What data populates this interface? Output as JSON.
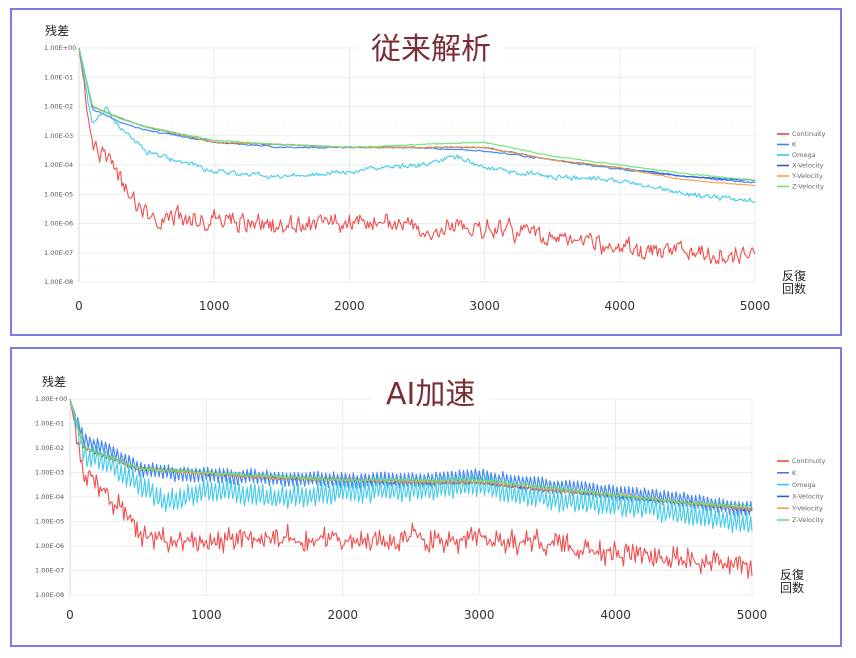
{
  "panels": [
    {
      "title": "従来解析",
      "ylabel": "残差",
      "xunit": "反復\n回数",
      "seed": 11,
      "mode": "conventional"
    },
    {
      "title": "AI加速",
      "ylabel": "残差",
      "xunit": "反復\n回数",
      "seed": 37,
      "mode": "ai"
    }
  ],
  "chart_data": [
    {
      "type": "line",
      "title": "従来解析",
      "ylabel": "残差",
      "xlabel": "反復回数",
      "yscale": "log",
      "ylim": [
        1e-08,
        1
      ],
      "xlim": [
        0,
        5000
      ],
      "xticks": [
        0,
        1000,
        2000,
        3000,
        4000,
        5000
      ],
      "yticks": [
        "1.00E+00",
        "1.00E-01",
        "1.00E-02",
        "1.00E-03",
        "1.00E-04",
        "1.00E-05",
        "1.00E-06",
        "1.00E-07",
        "1.00E-08"
      ],
      "legend": "right",
      "series": [
        {
          "name": "Continuity",
          "color": "#ef4444",
          "x": [
            0,
            100,
            200,
            300,
            400,
            500,
            700,
            1000,
            1500,
            2000,
            2500,
            3000,
            3500,
            4000,
            4500,
            5000
          ],
          "y": [
            1,
            0.0005,
            0.0002,
            5e-05,
            6e-06,
            2e-06,
            1.5e-06,
            1.5e-06,
            8e-07,
            1e-06,
            8e-07,
            8e-07,
            3e-07,
            1.5e-07,
            1e-07,
            8e-08
          ]
        },
        {
          "name": "K",
          "color": "#3b82f6",
          "x": [
            0,
            100,
            300,
            500,
            1000,
            1500,
            2000,
            2500,
            3000,
            3500,
            4000,
            4500,
            5000
          ],
          "y": [
            1,
            0.008,
            0.003,
            0.0015,
            0.0006,
            0.0004,
            0.0004,
            0.0004,
            0.0003,
            0.00015,
            7e-05,
            4e-05,
            2.5e-05
          ]
        },
        {
          "name": "Omega",
          "color": "#38c8e8",
          "x": [
            0,
            100,
            200,
            300,
            500,
            700,
            1000,
            1500,
            2000,
            2500,
            2800,
            3000,
            3500,
            4000,
            4500,
            5000
          ],
          "y": [
            1,
            0.002,
            0.01,
            0.002,
            0.0003,
            0.00015,
            6e-05,
            4e-05,
            6e-05,
            0.0001,
            0.0002,
            8e-05,
            4e-05,
            3e-05,
            1e-05,
            6e-06
          ]
        },
        {
          "name": "X-Velocity",
          "color": "#2f5dd9",
          "x": [
            0,
            100,
            300,
            500,
            1000,
            1500,
            2000,
            2500,
            3000,
            3500,
            4000,
            4500,
            5000
          ],
          "y": [
            1,
            0.01,
            0.004,
            0.002,
            0.0006,
            0.0005,
            0.0004,
            0.0004,
            0.0004,
            0.00015,
            8e-05,
            4e-05,
            3e-05
          ]
        },
        {
          "name": "Y-Velocity",
          "color": "#f59e42",
          "x": [
            0,
            100,
            300,
            500,
            1000,
            1500,
            2000,
            2500,
            3000,
            3500,
            4000,
            4500,
            5000
          ],
          "y": [
            1,
            0.01,
            0.004,
            0.002,
            0.0006,
            0.0005,
            0.0004,
            0.0004,
            0.0004,
            0.00015,
            8e-05,
            3e-05,
            2e-05
          ]
        },
        {
          "name": "Z-Velocity",
          "color": "#6ee07a",
          "x": [
            0,
            100,
            300,
            500,
            1000,
            1500,
            2000,
            2500,
            3000,
            3500,
            4000,
            4500,
            5000
          ],
          "y": [
            1,
            0.01,
            0.004,
            0.002,
            0.0007,
            0.0005,
            0.0004,
            0.0005,
            0.0006,
            0.0002,
            0.0001,
            5e-05,
            3e-05
          ]
        }
      ]
    },
    {
      "type": "line",
      "title": "AI加速",
      "ylabel": "残差",
      "xlabel": "反復回数",
      "yscale": "log",
      "ylim": [
        1e-08,
        1
      ],
      "xlim": [
        0,
        5000
      ],
      "xticks": [
        0,
        1000,
        2000,
        3000,
        4000,
        5000
      ],
      "yticks": [
        "1.00E+00",
        "1.00E-01",
        "1.00E-02",
        "1.00E-03",
        "1.00E-04",
        "1.00E-05",
        "1.00E-06",
        "1.00E-07",
        "1.00E-08"
      ],
      "legend": "right",
      "series": [
        {
          "name": "Continuity",
          "color": "#ef4444",
          "x": [
            0,
            100,
            200,
            300,
            400,
            500,
            700,
            1000,
            1500,
            2000,
            2500,
            3000,
            3500,
            4000,
            4500,
            5000
          ],
          "y": [
            1,
            0.001,
            0.0003,
            0.0001,
            3e-05,
            3e-06,
            2e-06,
            1.5e-06,
            2e-06,
            1.5e-06,
            2e-06,
            2e-06,
            1e-06,
            5e-07,
            3e-07,
            1.5e-07
          ]
        },
        {
          "name": "K",
          "color": "#3b82f6",
          "x": [
            0,
            100,
            300,
            500,
            700,
            1000,
            1500,
            2000,
            2500,
            3000,
            3500,
            4000,
            4500,
            5000
          ],
          "y": [
            1,
            0.02,
            0.008,
            0.0015,
            0.001,
            0.0008,
            0.0006,
            0.0005,
            0.0005,
            0.0007,
            0.0003,
            0.00015,
            8e-05,
            3e-05
          ]
        },
        {
          "name": "Omega",
          "color": "#38c8e8",
          "x": [
            0,
            100,
            300,
            500,
            700,
            1000,
            1500,
            2000,
            2500,
            3000,
            3500,
            4000,
            4500,
            5000
          ],
          "y": [
            1,
            0.005,
            0.002,
            0.0003,
            6e-05,
            0.0002,
            0.0001,
            0.00015,
            0.0002,
            0.0003,
            8e-05,
            5e-05,
            2e-05,
            8e-06
          ]
        },
        {
          "name": "X-Velocity",
          "color": "#2f5dd9",
          "x": [
            0,
            100,
            300,
            500,
            1000,
            1500,
            2000,
            2500,
            3000,
            3500,
            4000,
            4500,
            5000
          ],
          "y": [
            1,
            0.01,
            0.004,
            0.0015,
            0.0009,
            0.0006,
            0.0005,
            0.0004,
            0.0004,
            0.0002,
            0.00012,
            6e-05,
            3e-05
          ]
        },
        {
          "name": "Y-Velocity",
          "color": "#f59e42",
          "x": [
            0,
            100,
            300,
            500,
            1000,
            1500,
            2000,
            2500,
            3000,
            3500,
            4000,
            4500,
            5000
          ],
          "y": [
            1,
            0.01,
            0.004,
            0.0015,
            0.0009,
            0.0006,
            0.0005,
            0.0004,
            0.0004,
            0.0002,
            0.00012,
            6e-05,
            3e-05
          ]
        },
        {
          "name": "Z-Velocity",
          "color": "#6ee07a",
          "x": [
            0,
            100,
            300,
            500,
            1000,
            1500,
            2000,
            2500,
            3000,
            3500,
            4000,
            4500,
            5000
          ],
          "y": [
            1,
            0.01,
            0.004,
            0.0015,
            0.001,
            0.0007,
            0.0005,
            0.0005,
            0.0005,
            0.00025,
            0.00012,
            6e-05,
            4e-05
          ]
        }
      ]
    }
  ]
}
